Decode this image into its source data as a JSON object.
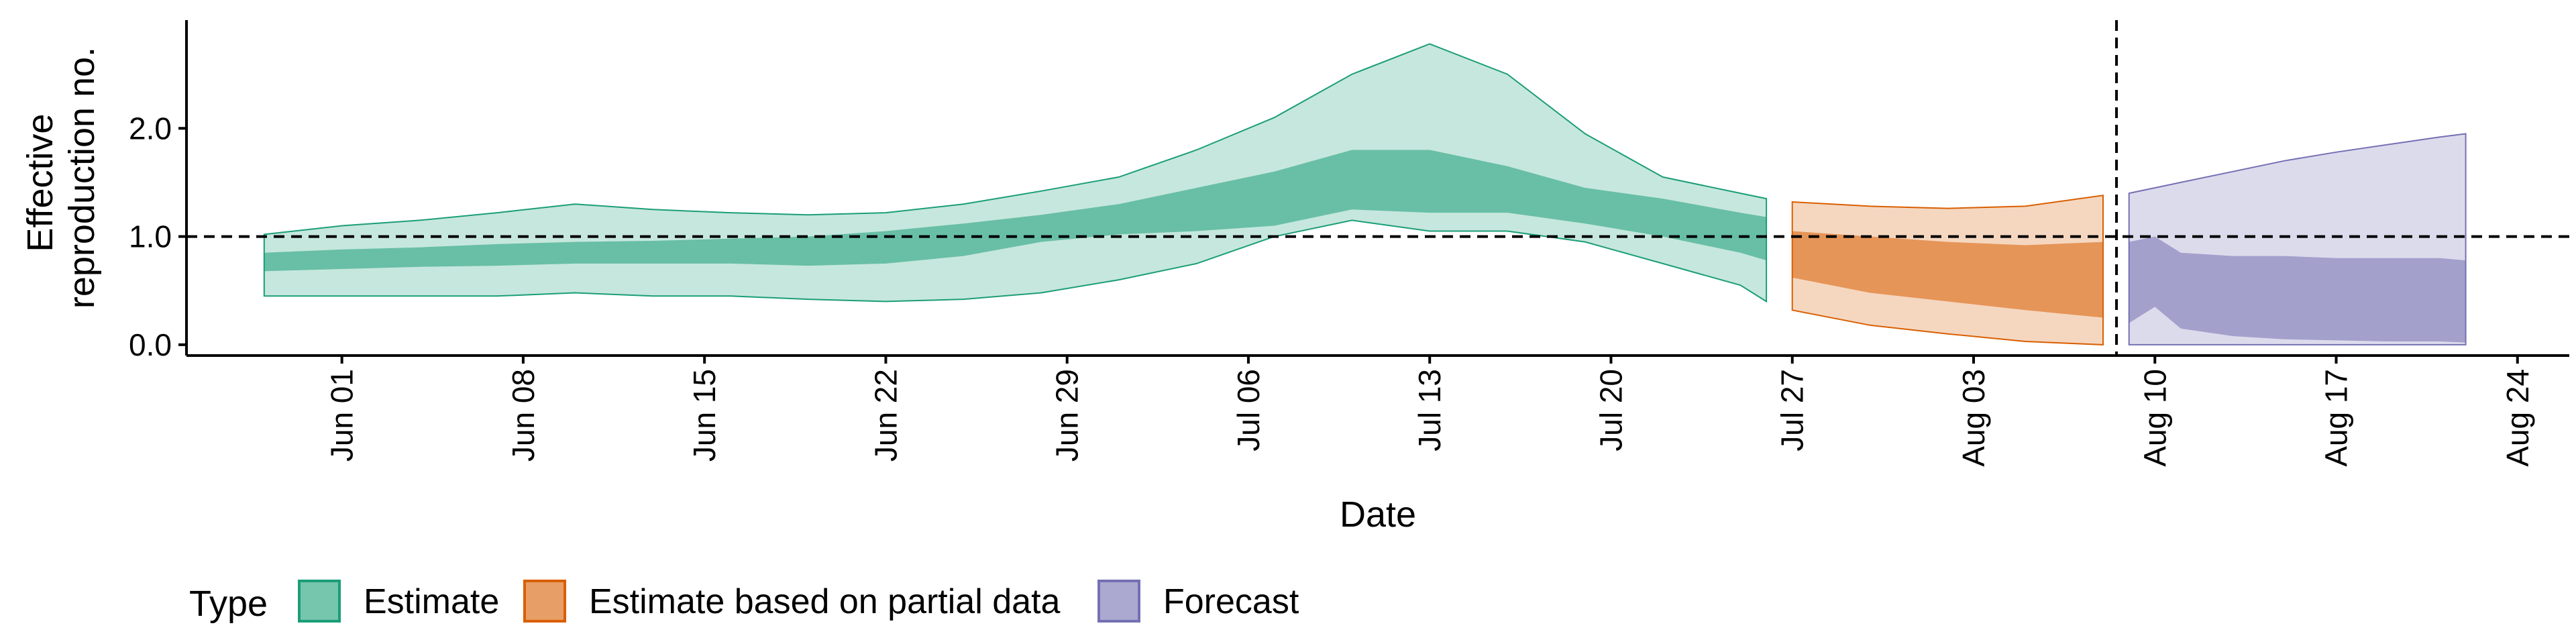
{
  "chart_data": {
    "type": "area",
    "xlabel": "Date",
    "ylabel_lines": [
      "Effective",
      "reproduction no."
    ],
    "x_range": [
      "2021-05-26",
      "2021-08-26"
    ],
    "ylim": [
      -0.1,
      3.0
    ],
    "y_ticks": [
      0.0,
      1.0,
      2.0
    ],
    "y_tick_labels": [
      "0.0",
      "1.0",
      "2.0"
    ],
    "x_ticks": [
      "2021-06-01",
      "2021-06-08",
      "2021-06-15",
      "2021-06-22",
      "2021-06-29",
      "2021-07-06",
      "2021-07-13",
      "2021-07-20",
      "2021-07-27",
      "2021-08-03",
      "2021-08-10",
      "2021-08-17",
      "2021-08-24"
    ],
    "x_tick_labels": [
      "Jun 01",
      "Jun 08",
      "Jun 15",
      "Jun 22",
      "Jun 29",
      "Jul 06",
      "Jul 13",
      "Jul 20",
      "Jul 27",
      "Aug 03",
      "Aug 10",
      "Aug 17",
      "Aug 24"
    ],
    "reference_line_y": 1.0,
    "forecast_start": "2021-08-08",
    "grid": false,
    "legend_position": "bottom",
    "legend_title": "Type",
    "series": [
      {
        "name": "Estimate",
        "color_fill": "#1b9e77",
        "color_line": "#1b9e77",
        "x": [
          "2021-05-29",
          "2021-06-01",
          "2021-06-04",
          "2021-06-07",
          "2021-06-10",
          "2021-06-13",
          "2021-06-16",
          "2021-06-19",
          "2021-06-22",
          "2021-06-25",
          "2021-06-28",
          "2021-07-01",
          "2021-07-04",
          "2021-07-07",
          "2021-07-10",
          "2021-07-13",
          "2021-07-16",
          "2021-07-19",
          "2021-07-22",
          "2021-07-25",
          "2021-07-26"
        ],
        "outer_lower": [
          0.45,
          0.45,
          0.45,
          0.45,
          0.48,
          0.45,
          0.45,
          0.42,
          0.4,
          0.42,
          0.48,
          0.6,
          0.75,
          1.0,
          1.15,
          1.05,
          1.05,
          0.95,
          0.75,
          0.55,
          0.4
        ],
        "outer_upper": [
          1.02,
          1.1,
          1.15,
          1.22,
          1.3,
          1.25,
          1.22,
          1.2,
          1.22,
          1.3,
          1.42,
          1.55,
          1.8,
          2.1,
          2.5,
          2.78,
          2.5,
          1.95,
          1.55,
          1.4,
          1.35
        ],
        "inner_lower": [
          0.68,
          0.7,
          0.72,
          0.73,
          0.75,
          0.75,
          0.75,
          0.73,
          0.75,
          0.82,
          0.95,
          1.02,
          1.05,
          1.1,
          1.25,
          1.22,
          1.22,
          1.12,
          1.0,
          0.85,
          0.78
        ],
        "inner_upper": [
          0.85,
          0.88,
          0.9,
          0.93,
          0.95,
          0.96,
          0.98,
          1.0,
          1.05,
          1.12,
          1.2,
          1.3,
          1.45,
          1.6,
          1.8,
          1.8,
          1.65,
          1.45,
          1.35,
          1.22,
          1.18
        ]
      },
      {
        "name": "Estimate based on partial data",
        "color_fill": "#d95f02",
        "color_line": "#d95f02",
        "x": [
          "2021-07-27",
          "2021-07-30",
          "2021-08-02",
          "2021-08-05",
          "2021-08-08"
        ],
        "outer_lower": [
          0.32,
          0.18,
          0.1,
          0.03,
          0.0
        ],
        "outer_upper": [
          1.32,
          1.28,
          1.26,
          1.28,
          1.38
        ],
        "inner_lower": [
          0.62,
          0.48,
          0.4,
          0.32,
          0.25
        ],
        "inner_upper": [
          1.05,
          1.0,
          0.95,
          0.92,
          0.95
        ]
      },
      {
        "name": "Forecast",
        "color_fill": "#7570b3",
        "color_line": "#7570b3",
        "x": [
          "2021-08-09",
          "2021-08-10",
          "2021-08-11",
          "2021-08-13",
          "2021-08-15",
          "2021-08-17",
          "2021-08-19",
          "2021-08-21",
          "2021-08-22"
        ],
        "outer_lower": [
          0.0,
          0.0,
          0.0,
          0.0,
          0.0,
          0.0,
          0.0,
          0.0,
          0.0
        ],
        "outer_upper": [
          1.4,
          1.45,
          1.5,
          1.6,
          1.7,
          1.78,
          1.85,
          1.92,
          1.95
        ],
        "inner_lower": [
          0.2,
          0.35,
          0.15,
          0.08,
          0.05,
          0.04,
          0.03,
          0.03,
          0.02
        ],
        "inner_upper": [
          0.95,
          1.0,
          0.85,
          0.82,
          0.82,
          0.8,
          0.8,
          0.8,
          0.78
        ]
      }
    ]
  }
}
